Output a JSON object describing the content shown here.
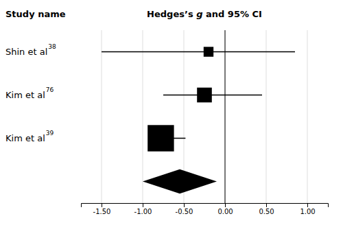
{
  "chart_data": {
    "type": "forest",
    "column_headers": [
      "Study name",
      "Hedges’s g and 95% CI"
    ],
    "categories": [
      "Shin et al",
      "Kim et al",
      "Kim et al"
    ],
    "superscripts": [
      "38",
      "76",
      "39"
    ],
    "values": [
      -0.2,
      -0.25,
      -0.78
    ],
    "ci_lower": [
      -1.5,
      -0.75,
      -0.78
    ],
    "ci_upper": [
      0.85,
      0.45,
      -0.48
    ],
    "box_half": [
      0.06,
      0.09,
      0.16
    ],
    "pooled": {
      "value": -0.55,
      "ci_lower": -1.0,
      "ci_upper": -0.1
    },
    "reference_line": 0,
    "color": "#000000",
    "xlim": [
      -1.75,
      1.25
    ],
    "xticks": [
      {
        "value": -1.5,
        "label": "-1.50"
      },
      {
        "value": -1.0,
        "label": "-1.00"
      },
      {
        "value": -0.5,
        "label": "-0.50"
      },
      {
        "value": 0.0,
        "label": "0.00"
      },
      {
        "value": 0.5,
        "label": "0.50"
      },
      {
        "value": 1.0,
        "label": "1.00"
      }
    ],
    "grid": true
  }
}
